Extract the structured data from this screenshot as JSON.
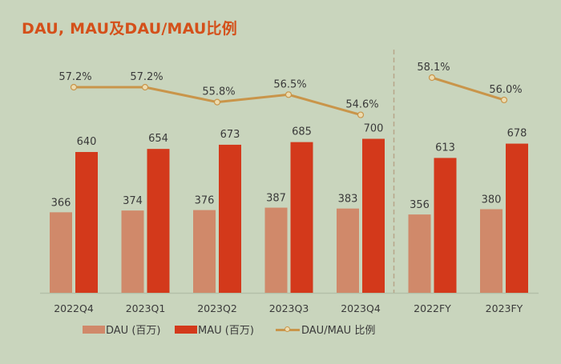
{
  "title": "DAU, MAU及DAU/MAU比例",
  "legend": {
    "dau": "DAU (百万)",
    "mau": "MAU (百万)",
    "ratio": "DAU/MAU 比例"
  },
  "colors": {
    "background": "#c9d5bd",
    "title": "#d4501a",
    "dau": "#d0896a",
    "mau": "#d3391b",
    "ratio_line": "#c9954a",
    "divider": "#b8a68a"
  },
  "chart_data": {
    "type": "bar",
    "title": "DAU, MAU及DAU/MAU比例",
    "xlabel": "",
    "ylabel": "",
    "categories": [
      "2022Q4",
      "2023Q1",
      "2023Q2",
      "2023Q3",
      "2023Q4",
      "2022FY",
      "2023FY"
    ],
    "series": [
      {
        "name": "DAU (百万)",
        "type": "bar",
        "values": [
          366,
          374,
          376,
          387,
          383,
          356,
          380
        ]
      },
      {
        "name": "MAU (百万)",
        "type": "bar",
        "values": [
          640,
          654,
          673,
          685,
          700,
          613,
          678
        ]
      },
      {
        "name": "DAU/MAU 比例",
        "type": "line",
        "values": [
          57.2,
          57.2,
          55.8,
          56.5,
          54.6,
          58.1,
          56.0
        ],
        "labels": [
          "57.2%",
          "57.2%",
          "55.8%",
          "56.5%",
          "54.6%",
          "58.1%",
          "56.0%"
        ],
        "line_groups": [
          [
            0,
            1,
            2,
            3,
            4
          ],
          [
            5,
            6
          ]
        ]
      }
    ],
    "divider_after_index": 4,
    "grid": false,
    "legend_position": "bottom"
  }
}
